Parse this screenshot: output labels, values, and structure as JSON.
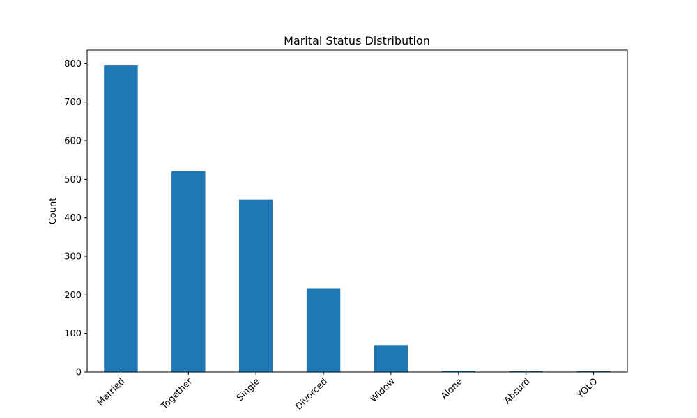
{
  "chart_data": {
    "type": "bar",
    "title": "Marital Status Distribution",
    "xlabel": "",
    "ylabel": "Count",
    "categories": [
      "Married",
      "Together",
      "Single",
      "Divorced",
      "Widow",
      "Alone",
      "Absurd",
      "YOLO"
    ],
    "values": [
      795,
      521,
      447,
      216,
      70,
      3,
      2,
      2
    ],
    "ylim": [
      0,
      835
    ],
    "yticks": [
      0,
      100,
      200,
      300,
      400,
      500,
      600,
      700,
      800
    ],
    "bar_color": "#1f77b4",
    "grid": false,
    "legend": "none"
  }
}
